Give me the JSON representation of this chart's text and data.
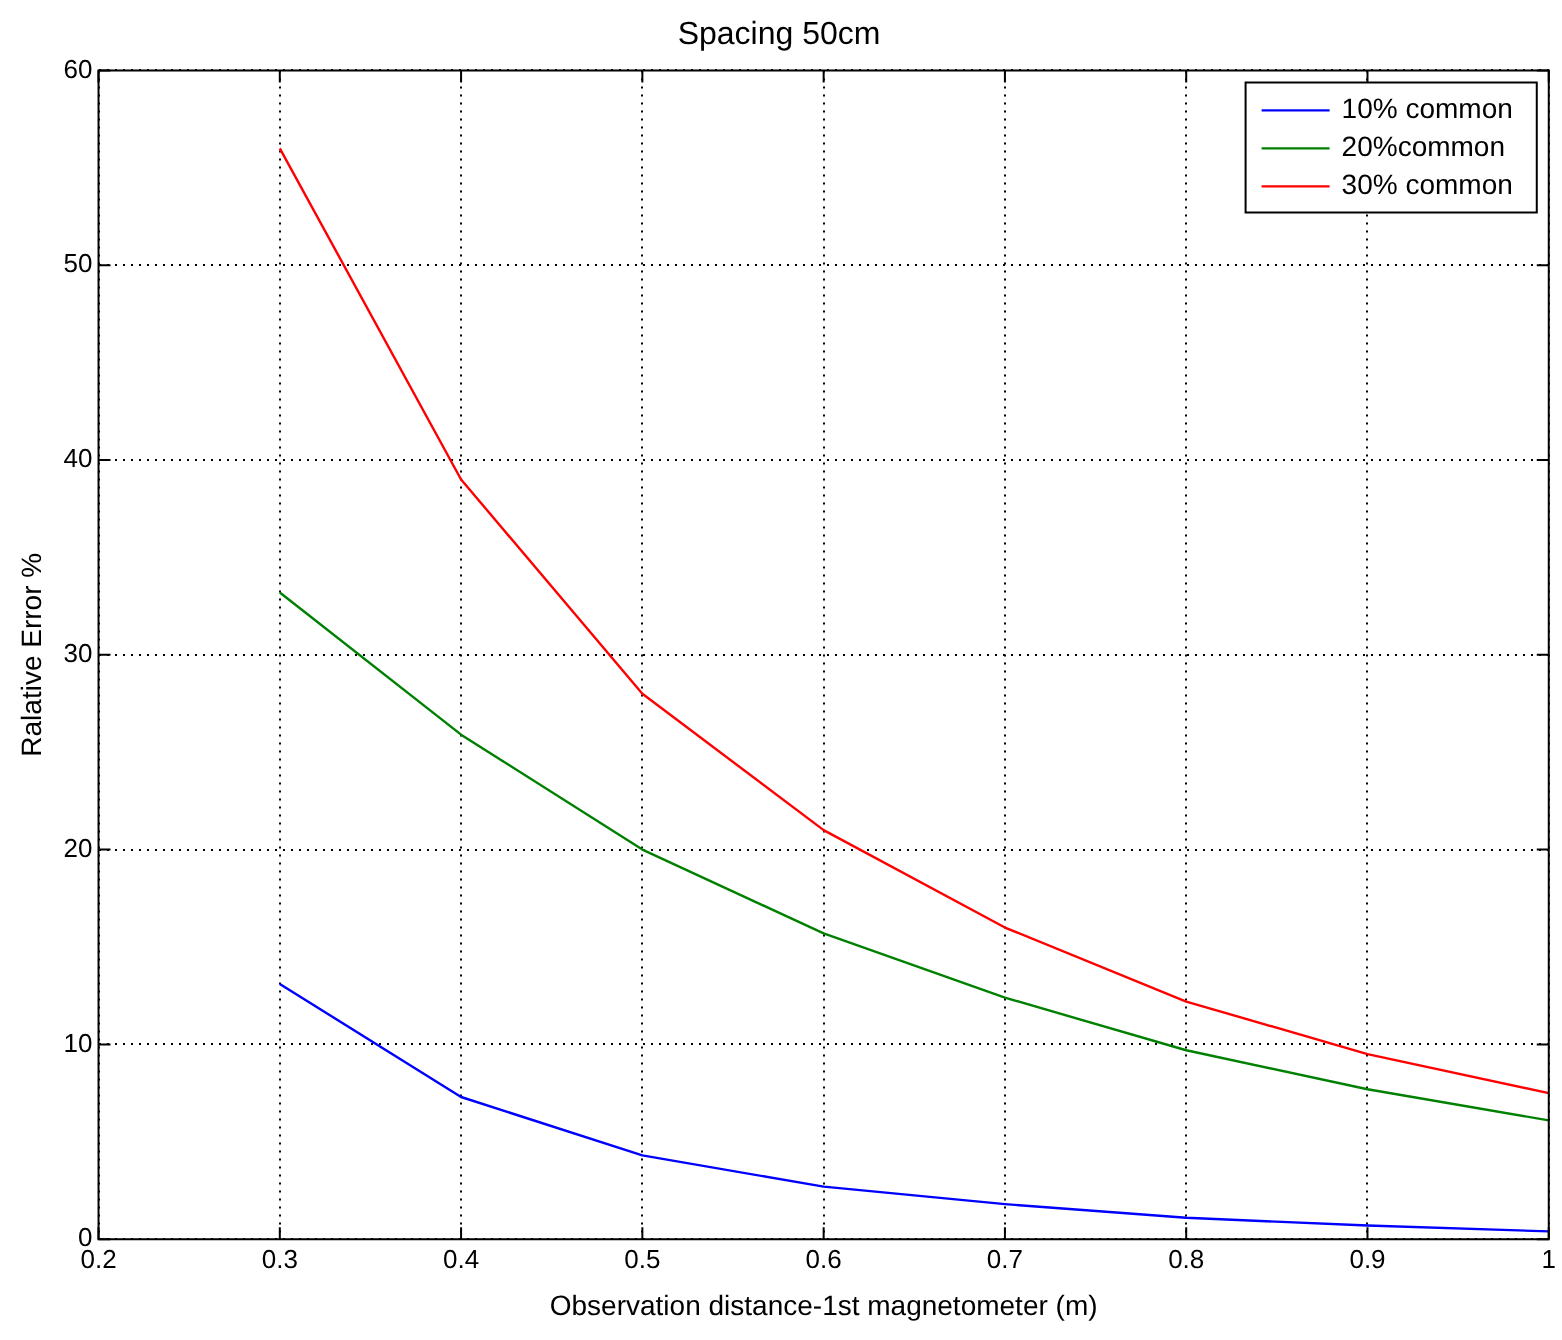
{
  "chart_data": {
    "type": "line",
    "title": "Spacing 50cm",
    "xlabel": "Observation distance-1st magnetometer (m)",
    "ylabel": "Ralative Error %",
    "x": [
      0.3,
      0.4,
      0.5,
      0.6,
      0.7,
      0.8,
      0.9,
      1.0
    ],
    "series": [
      {
        "name": "10% common",
        "color": "#0000ff",
        "values": [
          13.1,
          7.3,
          4.3,
          2.7,
          1.8,
          1.1,
          0.7,
          0.4
        ]
      },
      {
        "name": "20%common",
        "color": "#008000",
        "values": [
          33.2,
          25.9,
          20,
          15.7,
          12.4,
          9.7,
          7.7,
          6.1
        ]
      },
      {
        "name": "30% common",
        "color": "#ff0000",
        "values": [
          56,
          39,
          28,
          21,
          16,
          12.2,
          9.5,
          7.5
        ]
      }
    ],
    "xlim": [
      0.2,
      1
    ],
    "xticks": [
      0.2,
      0.3,
      0.4,
      0.5,
      0.6,
      0.7,
      0.8,
      0.9,
      1
    ],
    "ylim": [
      0,
      60
    ],
    "yticks": [
      0,
      10,
      20,
      30,
      40,
      50,
      60
    ],
    "grid": true,
    "legend": "top right",
    "marker": "none",
    "line_style": "solid"
  }
}
